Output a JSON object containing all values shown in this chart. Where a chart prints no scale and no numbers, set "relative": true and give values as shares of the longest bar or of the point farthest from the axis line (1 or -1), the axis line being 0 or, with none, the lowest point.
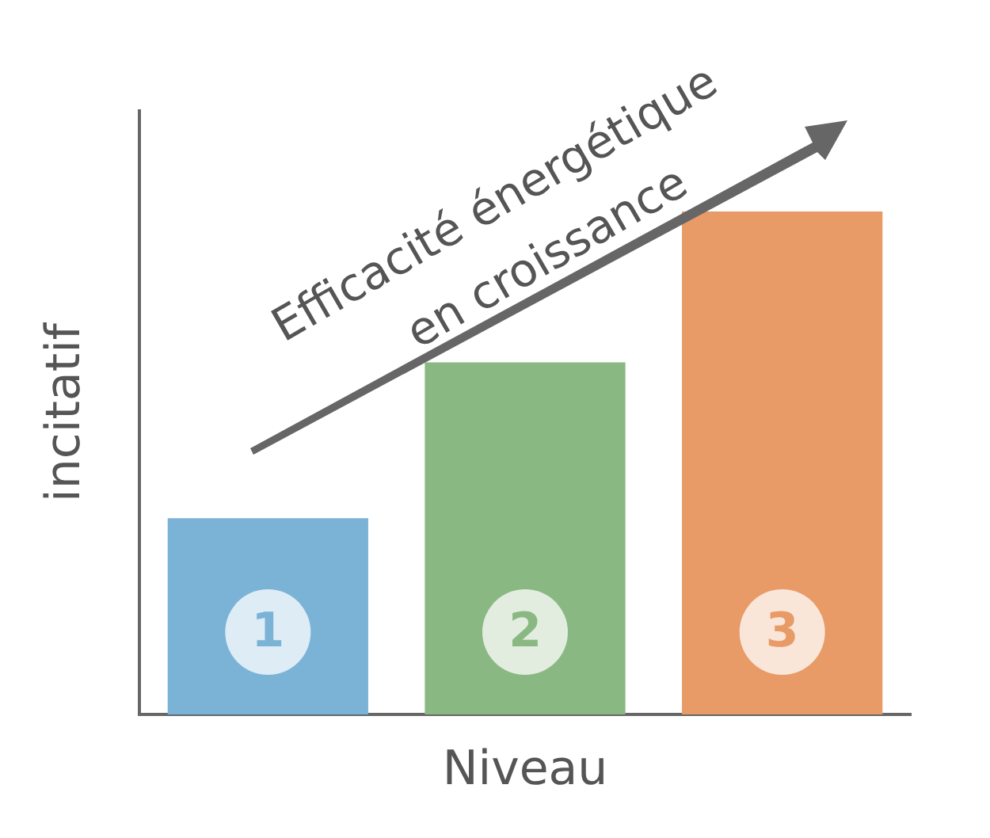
{
  "chart_data": {
    "type": "bar",
    "relative": true,
    "xlabel": "Niveau",
    "ylabel": "incitatif",
    "categories": [
      "1",
      "2",
      "3"
    ],
    "values": [
      0.39,
      0.7,
      1
    ],
    "colors": [
      "#7bb3d7",
      "#8ab882",
      "#e89a67"
    ],
    "annotations": [
      "Efficacité énergétique",
      "en croissance"
    ],
    "grid": false,
    "legend": false
  }
}
